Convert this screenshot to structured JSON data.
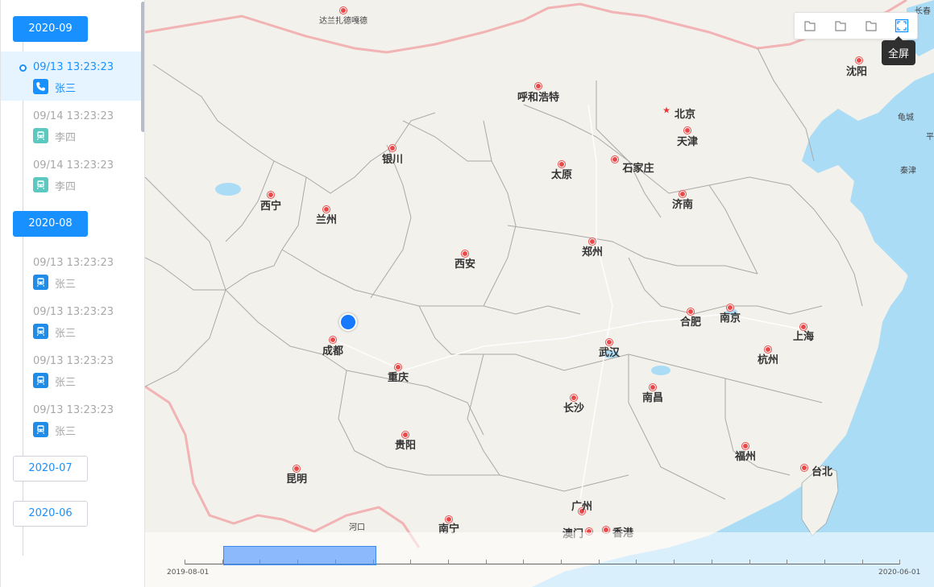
{
  "sidebar": {
    "groups": [
      {
        "month": "2020-09",
        "active": true,
        "records": [
          {
            "time": "09/13 13:23:23",
            "person": "张三",
            "type": "phone",
            "selected": true
          },
          {
            "time": "09/14 13:23:23",
            "person": "李四",
            "type": "train"
          },
          {
            "time": "09/14 13:23:23",
            "person": "李四",
            "type": "train"
          }
        ]
      },
      {
        "month": "2020-08",
        "active": true,
        "records": [
          {
            "time": "09/13 13:23:23",
            "person": "张三",
            "type": "train"
          },
          {
            "time": "09/13 13:23:23",
            "person": "张三",
            "type": "train"
          },
          {
            "time": "09/13 13:23:23",
            "person": "张三",
            "type": "train"
          },
          {
            "time": "09/13 13:23:23",
            "person": "张三",
            "type": "train"
          }
        ]
      },
      {
        "month": "2020-07",
        "active": false,
        "records": []
      },
      {
        "month": "2020-06",
        "active": false,
        "records": []
      }
    ]
  },
  "map": {
    "cities": [
      "达兰扎德嘎德",
      "沈阳",
      "呼和浩特",
      "北京",
      "天津",
      "银川",
      "太原",
      "石家庄",
      "西宁",
      "兰州",
      "济南",
      "郑州",
      "西安",
      "合肥",
      "南京",
      "上海",
      "成都",
      "武汉",
      "杭州",
      "重庆",
      "南昌",
      "长沙",
      "贵阳",
      "福州",
      "台北",
      "昆明",
      "广州",
      "南宁",
      "澳门",
      "香港",
      "河口"
    ],
    "small_labels": [
      "长春",
      "龟城",
      "秦津",
      "平"
    ],
    "tools": [
      "tool-1",
      "tool-2",
      "tool-3",
      "fullscreen"
    ],
    "tooltip": "全屏"
  },
  "timeline": {
    "start_label": "2019-08-01",
    "end_label": "2020-06-01"
  }
}
